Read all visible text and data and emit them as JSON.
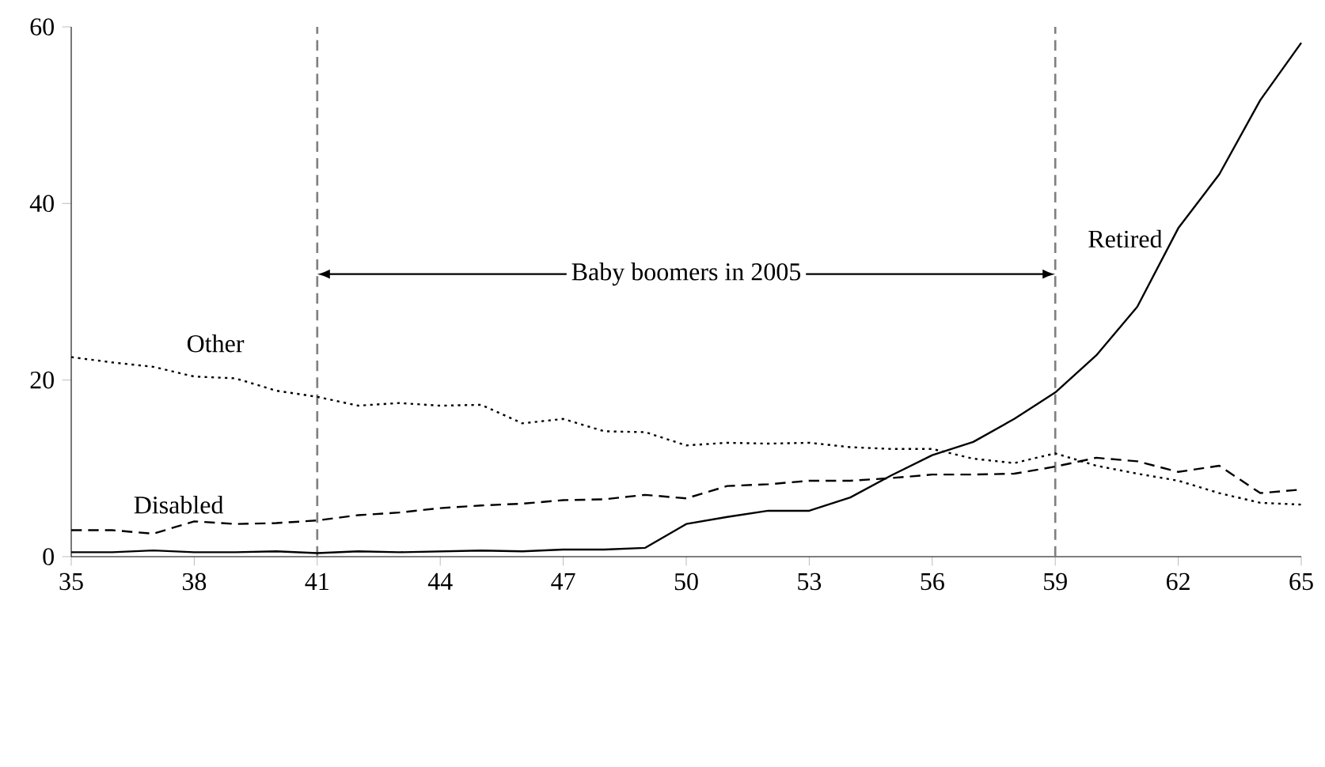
{
  "chart_data": {
    "type": "line",
    "x": [
      35,
      36,
      37,
      38,
      39,
      40,
      41,
      42,
      43,
      44,
      45,
      46,
      47,
      48,
      49,
      50,
      51,
      52,
      53,
      54,
      55,
      56,
      57,
      58,
      59,
      60,
      61,
      62,
      63,
      64,
      65
    ],
    "series": [
      {
        "name": "Other",
        "color": "#000000",
        "line_style": "dotted",
        "values": [
          22.6,
          22.0,
          21.5,
          20.4,
          20.2,
          18.8,
          18.1,
          17.1,
          17.4,
          17.1,
          17.2,
          15.1,
          15.6,
          14.2,
          14.1,
          12.6,
          12.9,
          12.8,
          12.9,
          12.4,
          12.2,
          12.2,
          11.1,
          10.6,
          11.7,
          10.3,
          9.4,
          8.6,
          7.2,
          6.1,
          5.9
        ]
      },
      {
        "name": "Disabled",
        "color": "#000000",
        "line_style": "dashed",
        "values": [
          3.0,
          3.0,
          2.6,
          4.0,
          3.7,
          3.8,
          4.1,
          4.7,
          5.0,
          5.5,
          5.8,
          6.0,
          6.4,
          6.5,
          7.0,
          6.6,
          8.0,
          8.2,
          8.6,
          8.6,
          8.9,
          9.3,
          9.3,
          9.4,
          10.2,
          11.2,
          10.8,
          9.6,
          10.3,
          7.2,
          7.6
        ]
      },
      {
        "name": "Retired",
        "color": "#000000",
        "line_style": "solid",
        "values": [
          0.5,
          0.5,
          0.7,
          0.5,
          0.5,
          0.6,
          0.4,
          0.6,
          0.5,
          0.6,
          0.7,
          0.6,
          0.8,
          0.8,
          1.0,
          3.7,
          4.5,
          5.2,
          5.2,
          6.7,
          9.2,
          11.5,
          13.0,
          15.6,
          18.6,
          22.8,
          28.3,
          37.2,
          43.3,
          51.7,
          58.2
        ]
      }
    ],
    "xlim": [
      35,
      65
    ],
    "xticks": [
      35,
      38,
      41,
      44,
      47,
      50,
      53,
      56,
      59,
      62,
      65
    ],
    "ylim": [
      0,
      60
    ],
    "yticks": [
      0,
      20,
      40,
      60
    ],
    "ref_lines": [
      {
        "axis": "x",
        "value": 41,
        "color": "#808080",
        "line_style": "dashed"
      },
      {
        "axis": "x",
        "value": 59,
        "color": "#808080",
        "line_style": "dashed"
      }
    ],
    "annotations": [
      {
        "text": "Baby boomers in 2005",
        "x": 41,
        "y": 32
      }
    ],
    "grid": false
  }
}
